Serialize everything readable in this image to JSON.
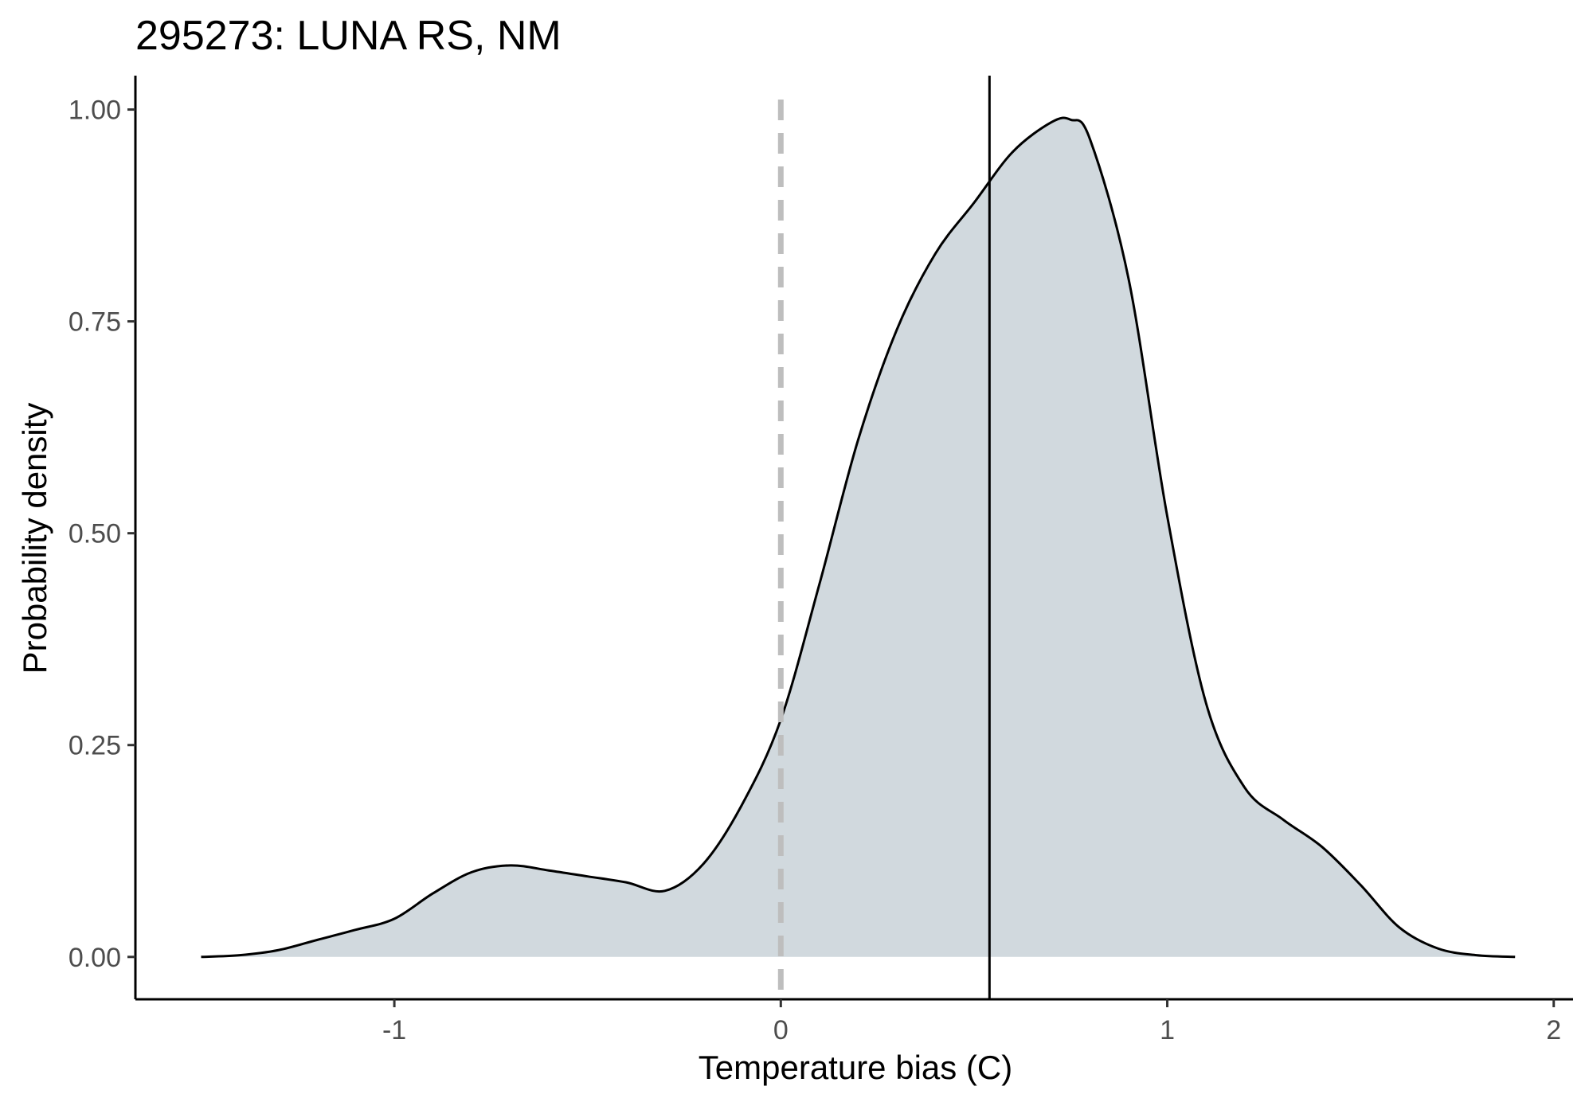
{
  "chart_data": {
    "type": "area",
    "title": "295273: LUNA RS, NM",
    "xlabel": "Temperature bias (C)",
    "ylabel": "Probability density",
    "xlim": [
      -1.67,
      2.05
    ],
    "ylim": [
      -0.05,
      1.04
    ],
    "x_ticks": [
      {
        "value": -1,
        "label": "-1"
      },
      {
        "value": 0,
        "label": "0"
      },
      {
        "value": 1,
        "label": "1"
      },
      {
        "value": 2,
        "label": "2"
      }
    ],
    "y_ticks": [
      {
        "value": 0.0,
        "label": "0.00"
      },
      {
        "value": 0.25,
        "label": "0.25"
      },
      {
        "value": 0.5,
        "label": "0.50"
      },
      {
        "value": 0.75,
        "label": "0.75"
      },
      {
        "value": 1.0,
        "label": "1.00"
      }
    ],
    "grid": false,
    "legend": "none",
    "series": [
      {
        "kind": "density",
        "fill_color": "#d1d9de",
        "line_color": "#000000",
        "x": [
          -1.5,
          -1.4,
          -1.3,
          -1.2,
          -1.1,
          -1.0,
          -0.9,
          -0.8,
          -0.7,
          -0.6,
          -0.5,
          -0.4,
          -0.3,
          -0.2,
          -0.1,
          0.0,
          0.1,
          0.2,
          0.3,
          0.4,
          0.5,
          0.6,
          0.7,
          0.75,
          0.8,
          0.9,
          1.0,
          1.1,
          1.2,
          1.3,
          1.4,
          1.5,
          1.6,
          1.7,
          1.8,
          1.9
        ],
        "y": [
          0.0,
          0.002,
          0.008,
          0.02,
          0.032,
          0.045,
          0.075,
          0.1,
          0.108,
          0.102,
          0.095,
          0.088,
          0.078,
          0.11,
          0.18,
          0.28,
          0.44,
          0.61,
          0.74,
          0.83,
          0.89,
          0.95,
          0.985,
          0.988,
          0.965,
          0.8,
          0.52,
          0.3,
          0.2,
          0.162,
          0.13,
          0.085,
          0.035,
          0.01,
          0.002,
          0.0
        ]
      }
    ],
    "reference_lines": [
      {
        "orientation": "vertical",
        "x": 0,
        "style": "dashed",
        "color": "#bebebe"
      },
      {
        "orientation": "vertical",
        "x": 0.54,
        "style": "solid",
        "color": "#000000"
      }
    ]
  }
}
